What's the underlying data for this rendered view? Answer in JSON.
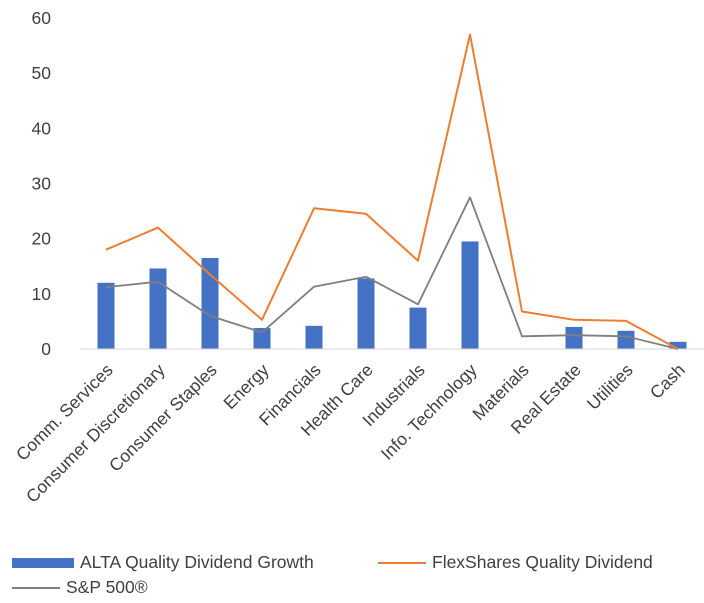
{
  "chart_data": {
    "type": "bar",
    "categories": [
      "Comm. Services",
      "Consumer Discretionary",
      "Consumer Staples",
      "Energy",
      "Financials",
      "Health Care",
      "Industrials",
      "Info. Technology",
      "Materials",
      "Real Estate",
      "Utilities",
      "Cash"
    ],
    "series": [
      {
        "name": "ALTA Quality Dividend Growth",
        "type": "bar",
        "color": "#4472C4",
        "values": [
          12.0,
          14.6,
          16.5,
          3.8,
          4.2,
          12.8,
          7.5,
          19.5,
          0,
          4.0,
          3.3,
          1.3
        ]
      },
      {
        "name": "FlexShares Quality Dividend",
        "type": "line",
        "color": "#ED7D31",
        "values": [
          18.0,
          22.0,
          13.5,
          5.3,
          25.5,
          24.5,
          16.0,
          57.0,
          6.8,
          5.3,
          5.1,
          0
        ]
      },
      {
        "name": "S&P 500®",
        "type": "line",
        "color": "#7F7F7F",
        "values": [
          11.2,
          12.2,
          6.0,
          3.0,
          11.3,
          13.1,
          8.1,
          27.5,
          2.3,
          2.5,
          2.3,
          0
        ]
      }
    ],
    "yticks": [
      "0",
      "10",
      "20",
      "30",
      "40",
      "50",
      "60"
    ],
    "ylim": [
      0,
      60
    ],
    "grid": false,
    "legend_position": "bottom"
  }
}
